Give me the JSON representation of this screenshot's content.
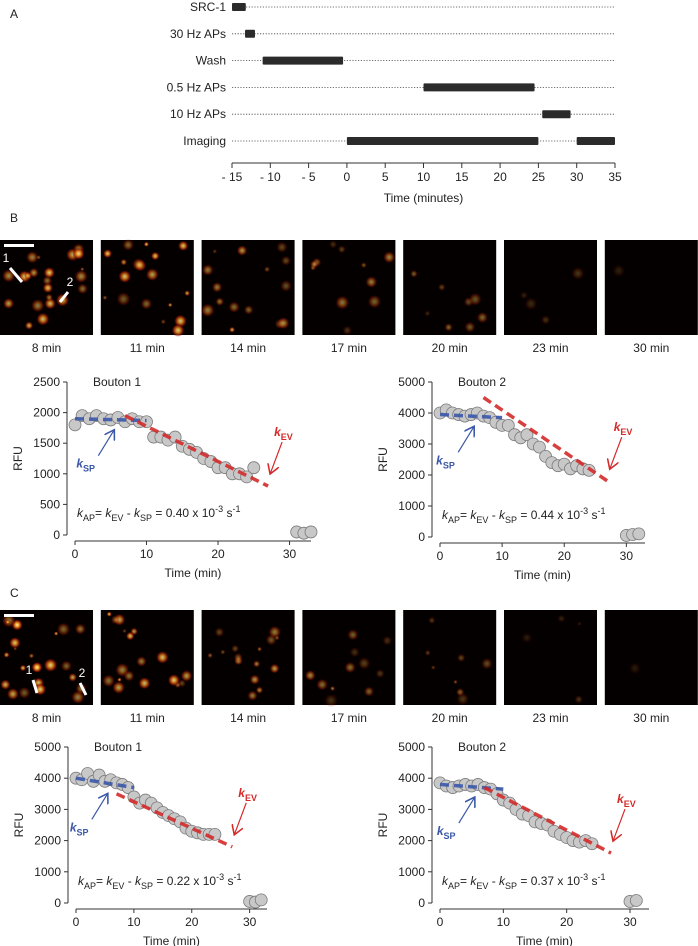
{
  "panel_labels": [
    "A",
    "B",
    "C"
  ],
  "image_strips": [
    {
      "labels": [
        "8 min",
        "11 min",
        "14 min",
        "17 min",
        "20 min",
        "23 min",
        "30 min"
      ],
      "markers": [
        "1",
        "2"
      ]
    },
    {
      "labels": [
        "8 min",
        "11 min",
        "14 min",
        "17 min",
        "20 min",
        "23 min",
        "30 min"
      ],
      "markers": [
        "1",
        "2"
      ]
    }
  ],
  "chart_data": [
    {
      "type": "timeline",
      "xlabel": "Time (minutes)",
      "color": "#2b2b2b",
      "rows": [
        {
          "label": "SRC-1",
          "spans": [
            [
              -15,
              -13.2
            ]
          ]
        },
        {
          "label": "30 Hz APs",
          "spans": [
            [
              -13.3,
              -12
            ]
          ]
        },
        {
          "label": "Wash",
          "spans": [
            [
              -11,
              -0.5
            ]
          ]
        },
        {
          "label": "0.5 Hz APs",
          "spans": [
            [
              10,
              24.5
            ]
          ]
        },
        {
          "label": "10 Hz APs",
          "spans": [
            [
              25.5,
              29.2
            ]
          ]
        },
        {
          "label": "Imaging",
          "spans": [
            [
              0,
              25
            ],
            [
              30,
              35
            ]
          ]
        }
      ],
      "xlim": [
        -15,
        35
      ],
      "xticks": [
        {
          "value": -15,
          "label": "- 15"
        },
        {
          "value": -10,
          "label": "- 10"
        },
        {
          "value": -5,
          "label": "- 5"
        },
        0,
        5,
        10,
        15,
        20,
        25,
        30,
        35
      ]
    },
    {
      "type": "scatter",
      "title": "Bouton 1",
      "xlabel": "Time (min)",
      "ylabel": "RFU",
      "color": "#c8c8c8",
      "x": [
        0,
        1,
        2,
        3,
        4,
        5,
        6,
        7,
        8,
        9,
        10,
        11,
        12,
        13,
        14,
        15,
        16,
        17,
        18,
        19,
        20,
        21,
        22,
        23,
        24,
        25,
        31,
        32,
        33
      ],
      "y": [
        1800,
        1950,
        1900,
        1950,
        1900,
        1880,
        1920,
        1850,
        1900,
        1850,
        1850,
        1600,
        1600,
        1550,
        1600,
        1450,
        1400,
        1350,
        1250,
        1200,
        1100,
        1100,
        1000,
        1000,
        950,
        1100,
        50,
        30,
        50
      ],
      "xlim": [
        0,
        33
      ],
      "ylim": [
        0,
        2500
      ],
      "xticks": [
        0,
        10,
        20,
        30
      ],
      "yticks": [
        0,
        500,
        1000,
        1500,
        2000,
        2500
      ],
      "fits": [
        {
          "label": "k",
          "label_sub": "SP",
          "color": "#3a57a8",
          "x": [
            0,
            10
          ],
          "y": [
            1900,
            1870
          ]
        },
        {
          "label": "k",
          "label_sub": "EV",
          "color": "#d42a2a",
          "x": [
            7,
            27
          ],
          "y": [
            1950,
            800
          ]
        }
      ],
      "equation": [
        {
          "text": "k",
          "style": "italic"
        },
        {
          "text": "AP",
          "style": "sub"
        },
        {
          "text": "= ",
          "style": "normal"
        },
        {
          "text": "k",
          "style": "italic"
        },
        {
          "text": "EV",
          "style": "sub"
        },
        {
          "text": " - ",
          "style": "normal"
        },
        {
          "text": "k",
          "style": "italic"
        },
        {
          "text": "SP",
          "style": "sub"
        },
        {
          "text": " = 0.40 x 10",
          "style": "normal"
        },
        {
          "text": "-3",
          "style": "sup"
        },
        {
          "text": " s",
          "style": "normal"
        },
        {
          "text": "-1",
          "style": "sup"
        }
      ]
    },
    {
      "type": "scatter",
      "title": "Bouton 2",
      "xlabel": "Time (min)",
      "ylabel": "RFU",
      "color": "#c8c8c8",
      "x": [
        0,
        1,
        2,
        3,
        4,
        5,
        6,
        7,
        8,
        9,
        10,
        11,
        12,
        13,
        14,
        15,
        16,
        17,
        18,
        19,
        20,
        21,
        22,
        23,
        24,
        30,
        31,
        32
      ],
      "y": [
        4000,
        4100,
        4000,
        3950,
        3900,
        3950,
        4000,
        3900,
        3850,
        3700,
        3600,
        3600,
        3300,
        3200,
        3300,
        3000,
        2900,
        2600,
        2400,
        2300,
        2350,
        2200,
        2300,
        2200,
        2150,
        50,
        80,
        100
      ],
      "xlim": [
        0,
        33
      ],
      "ylim": [
        0,
        5000
      ],
      "xticks": [
        0,
        10,
        20,
        30
      ],
      "yticks": [
        0,
        1000,
        2000,
        3000,
        4000,
        5000
      ],
      "fits": [
        {
          "label": "k",
          "label_sub": "SP",
          "color": "#3a57a8",
          "x": [
            0,
            10
          ],
          "y": [
            3950,
            3850
          ]
        },
        {
          "label": "k",
          "label_sub": "EV",
          "color": "#d42a2a",
          "x": [
            7,
            27
          ],
          "y": [
            4500,
            1800
          ]
        }
      ],
      "equation": [
        {
          "text": "k",
          "style": "italic"
        },
        {
          "text": "AP",
          "style": "sub"
        },
        {
          "text": "= ",
          "style": "normal"
        },
        {
          "text": "k",
          "style": "italic"
        },
        {
          "text": "EV",
          "style": "sub"
        },
        {
          "text": " - ",
          "style": "normal"
        },
        {
          "text": "k",
          "style": "italic"
        },
        {
          "text": "SP",
          "style": "sub"
        },
        {
          "text": " = 0.44 x 10",
          "style": "normal"
        },
        {
          "text": "-3",
          "style": "sup"
        },
        {
          "text": " s",
          "style": "normal"
        },
        {
          "text": "-1",
          "style": "sup"
        }
      ]
    },
    {
      "type": "scatter",
      "title": "Bouton 1",
      "xlabel": "Time (min)",
      "ylabel": "RFU",
      "color": "#c8c8c8",
      "x": [
        0,
        1,
        2,
        3,
        4,
        5,
        6,
        7,
        8,
        9,
        10,
        11,
        12,
        13,
        14,
        15,
        16,
        17,
        18,
        19,
        20,
        21,
        22,
        23,
        24,
        30,
        31,
        32
      ],
      "y": [
        4000,
        3950,
        4150,
        3900,
        4100,
        3900,
        3950,
        3850,
        3800,
        3700,
        3400,
        3200,
        3300,
        3200,
        3050,
        2900,
        2800,
        2700,
        2600,
        2400,
        2300,
        2250,
        2200,
        2200,
        2200,
        50,
        30,
        100
      ],
      "xlim": [
        0,
        33
      ],
      "ylim": [
        0,
        5000
      ],
      "xticks": [
        0,
        10,
        20,
        30
      ],
      "yticks": [
        0,
        1000,
        2000,
        3000,
        4000,
        5000
      ],
      "fits": [
        {
          "label": "k",
          "label_sub": "SP",
          "color": "#3a57a8",
          "x": [
            0,
            10
          ],
          "y": [
            4000,
            3700
          ]
        },
        {
          "label": "k",
          "label_sub": "EV",
          "color": "#d42a2a",
          "x": [
            7,
            27
          ],
          "y": [
            3500,
            1800
          ]
        }
      ],
      "equation": [
        {
          "text": "k",
          "style": "italic"
        },
        {
          "text": "AP",
          "style": "sub"
        },
        {
          "text": "= ",
          "style": "normal"
        },
        {
          "text": "k",
          "style": "italic"
        },
        {
          "text": "EV",
          "style": "sub"
        },
        {
          "text": " - ",
          "style": "normal"
        },
        {
          "text": "k",
          "style": "italic"
        },
        {
          "text": "SP",
          "style": "sub"
        },
        {
          "text": " = 0.22 x 10",
          "style": "normal"
        },
        {
          "text": "-3",
          "style": "sup"
        },
        {
          "text": " s",
          "style": "normal"
        },
        {
          "text": "-1",
          "style": "sup"
        }
      ]
    },
    {
      "type": "scatter",
      "title": "Bouton 2",
      "xlabel": "Time (min)",
      "ylabel": "RFU",
      "color": "#c8c8c8",
      "x": [
        0,
        1,
        2,
        3,
        4,
        5,
        6,
        7,
        8,
        9,
        10,
        11,
        12,
        13,
        14,
        15,
        16,
        17,
        18,
        19,
        20,
        21,
        22,
        23,
        24,
        30,
        31
      ],
      "y": [
        3850,
        3750,
        3700,
        3750,
        3800,
        3750,
        3800,
        3700,
        3650,
        3500,
        3300,
        3200,
        3000,
        2850,
        2800,
        2600,
        2550,
        2500,
        2300,
        2200,
        2100,
        2000,
        1950,
        2000,
        1900,
        50,
        80
      ],
      "xlim": [
        0,
        33
      ],
      "ylim": [
        0,
        5000
      ],
      "xticks": [
        0,
        10,
        20,
        30
      ],
      "yticks": [
        0,
        1000,
        2000,
        3000,
        4000,
        5000
      ],
      "fits": [
        {
          "label": "k",
          "label_sub": "SP",
          "color": "#3a57a8",
          "x": [
            0,
            10
          ],
          "y": [
            3800,
            3650
          ]
        },
        {
          "label": "k",
          "label_sub": "EV",
          "color": "#d42a2a",
          "x": [
            7,
            27
          ],
          "y": [
            3700,
            1600
          ]
        }
      ],
      "equation": [
        {
          "text": "k",
          "style": "italic"
        },
        {
          "text": "AP",
          "style": "sub"
        },
        {
          "text": "= ",
          "style": "normal"
        },
        {
          "text": "k",
          "style": "italic"
        },
        {
          "text": "EV",
          "style": "sub"
        },
        {
          "text": " - ",
          "style": "normal"
        },
        {
          "text": "k",
          "style": "italic"
        },
        {
          "text": "SP",
          "style": "sub"
        },
        {
          "text": " = 0.37 x 10",
          "style": "normal"
        },
        {
          "text": "-3",
          "style": "sup"
        },
        {
          "text": " s",
          "style": "normal"
        },
        {
          "text": "-1",
          "style": "sup"
        }
      ]
    }
  ]
}
